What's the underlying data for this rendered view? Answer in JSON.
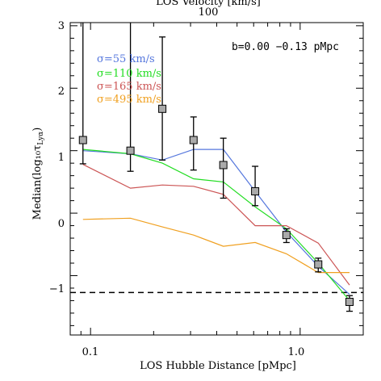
{
  "chart_data": {
    "type": "line",
    "xlabel": "LOS Hubble Distance [pMpc]",
    "ylabel": "Median(log₁₀τ",
    "ylabel_sub": "Lyα",
    "ylabel_close": ")",
    "top_axis_label": "LOS Velocity [km/s]",
    "top_tick_label": "100",
    "x_scale": "log",
    "xlim": [
      0.08,
      2.0
    ],
    "ylim": [
      -1.95,
      3.05
    ],
    "x_tick_labels": [
      "0.1",
      "1.0"
    ],
    "y_tick_labels": [
      "−1",
      "0",
      "1",
      "2",
      "3"
    ],
    "annotation": "b=0.00 −0.13 pMpc",
    "reference_line": {
      "y": -1.27,
      "style": "dashed",
      "color": "#000000"
    },
    "x": [
      0.092,
      0.155,
      0.22,
      0.31,
      0.43,
      0.61,
      0.86,
      1.22,
      1.72
    ],
    "series": [
      {
        "name": "σ=55 km/s",
        "color": "#5577dd",
        "x": [
          0.092,
          0.155,
          0.22,
          0.31,
          0.43,
          0.61,
          0.86,
          1.22,
          1.72
        ],
        "values": [
          1.0,
          0.95,
          0.85,
          1.02,
          1.02,
          0.35,
          -0.3,
          -0.85,
          -1.3
        ]
      },
      {
        "name": "σ=110 km/s",
        "color": "#22dd22",
        "x": [
          0.092,
          0.155,
          0.22,
          0.31,
          0.43,
          0.61,
          0.86,
          1.22,
          1.72
        ],
        "values": [
          1.02,
          0.95,
          0.8,
          0.55,
          0.5,
          0.1,
          -0.25,
          -0.8,
          -1.4
        ]
      },
      {
        "name": "σ=165 km/s",
        "color": "#cc5555",
        "x": [
          0.092,
          0.155,
          0.22,
          0.31,
          0.43,
          0.61,
          0.86,
          1.22,
          1.72
        ],
        "values": [
          0.78,
          0.4,
          0.45,
          0.43,
          0.3,
          -0.2,
          -0.2,
          -0.48,
          -1.15
        ]
      },
      {
        "name": "σ=495 km/s",
        "color": "#f0a020",
        "x": [
          0.092,
          0.155,
          0.22,
          0.31,
          0.43,
          0.61,
          0.86,
          1.22,
          1.72
        ],
        "values": [
          -0.1,
          -0.08,
          -0.22,
          -0.35,
          -0.53,
          -0.47,
          -0.65,
          -0.95,
          -0.95
        ]
      }
    ],
    "observed": {
      "marker": "square",
      "marker_color": "#aaaaaa",
      "x": [
        0.092,
        0.155,
        0.22,
        0.31,
        0.43,
        0.61,
        0.86,
        1.22,
        1.72
      ],
      "values": [
        1.17,
        1.0,
        1.67,
        1.17,
        0.77,
        0.35,
        -0.35,
        -0.82,
        -1.42
      ],
      "err_low": [
        0.38,
        0.33,
        0.82,
        0.48,
        0.53,
        0.23,
        0.12,
        0.12,
        0.15
      ],
      "err_high": [
        2.2,
        2.2,
        1.15,
        0.37,
        0.43,
        0.4,
        0.1,
        0.1,
        0.1
      ]
    }
  }
}
